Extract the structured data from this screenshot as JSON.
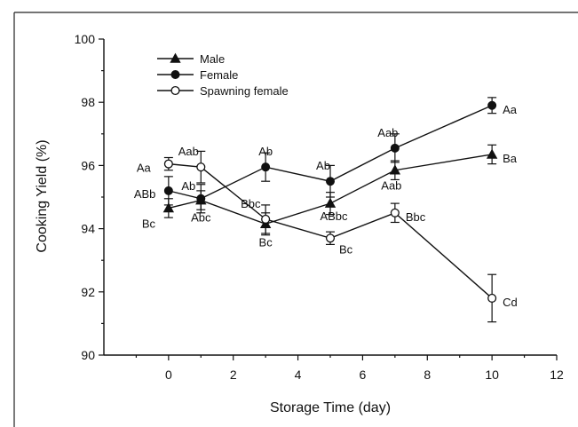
{
  "chart_data": {
    "type": "line",
    "title": "",
    "xlabel": "Storage Time (day)",
    "ylabel": "Cooking Yield (%)",
    "xlim": [
      -2,
      12
    ],
    "ylim": [
      90,
      100
    ],
    "xticks": [
      0,
      2,
      4,
      6,
      8,
      10,
      12
    ],
    "yticks": [
      90,
      92,
      94,
      96,
      98,
      100
    ],
    "grid": false,
    "legend_position": "top-left",
    "series": [
      {
        "name": "Male",
        "marker": "triangle-filled",
        "x": [
          0,
          1,
          3,
          5,
          7,
          10
        ],
        "y": [
          94.65,
          94.9,
          94.15,
          94.8,
          95.85,
          96.35
        ],
        "err": [
          0.3,
          0.3,
          0.35,
          0.35,
          0.3,
          0.3
        ],
        "labels": [
          "Bc",
          "Abc",
          "Bc",
          "ABbc",
          "Aab",
          "Ba"
        ]
      },
      {
        "name": "Female",
        "marker": "circle-filled",
        "x": [
          0,
          1,
          3,
          5,
          7,
          10
        ],
        "y": [
          95.2,
          94.95,
          95.95,
          95.5,
          96.55,
          97.9
        ],
        "err": [
          0.45,
          0.45,
          0.45,
          0.5,
          0.45,
          0.25
        ],
        "labels": [
          "ABb",
          "Ab",
          "Ab",
          "Ab",
          "Aab",
          "Aa"
        ]
      },
      {
        "name": "Spawning female",
        "marker": "circle-open",
        "x": [
          0,
          1,
          3,
          5,
          7,
          10
        ],
        "y": [
          96.05,
          95.95,
          94.3,
          93.7,
          94.5,
          91.8
        ],
        "err": [
          0.2,
          0.5,
          0.45,
          0.2,
          0.3,
          0.75
        ],
        "labels": [
          "Aa",
          "Aab",
          "Bbc",
          "Bc",
          "Bbc",
          "Cd"
        ]
      }
    ]
  }
}
